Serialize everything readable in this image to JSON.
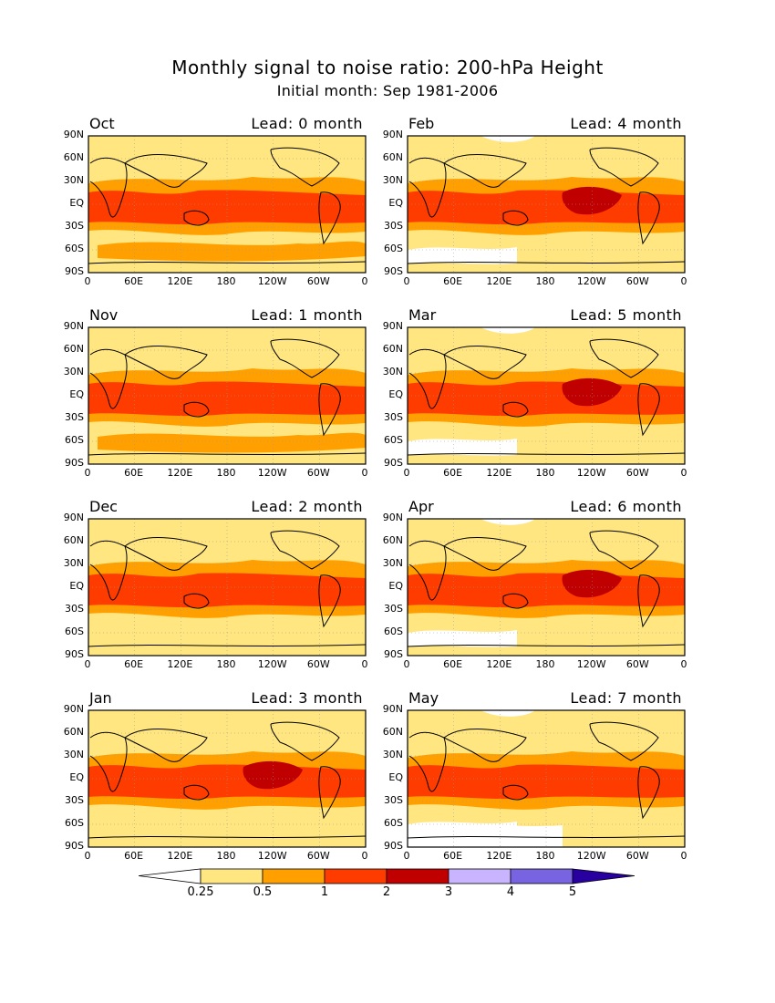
{
  "header": {
    "title": "Monthly signal to noise ratio: 200-hPa Height",
    "subtitle": "Initial month: Sep 1981-2006"
  },
  "axes": {
    "lat_ticks": [
      "90N",
      "60N",
      "30N",
      "EQ",
      "30S",
      "60S",
      "90S"
    ],
    "lon_ticks": [
      "0",
      "60E",
      "120E",
      "180",
      "120W",
      "60W",
      "0"
    ]
  },
  "panels": [
    {
      "month": "Oct",
      "lead": "Lead: 0 month"
    },
    {
      "month": "Feb",
      "lead": "Lead: 4 month"
    },
    {
      "month": "Nov",
      "lead": "Lead: 1 month"
    },
    {
      "month": "Mar",
      "lead": "Lead: 5 month"
    },
    {
      "month": "Dec",
      "lead": "Lead: 2 month"
    },
    {
      "month": "Apr",
      "lead": "Lead: 6 month"
    },
    {
      "month": "Jan",
      "lead": "Lead: 3 month"
    },
    {
      "month": "May",
      "lead": "Lead: 7 month"
    }
  ],
  "colorbar": {
    "labels": [
      "0.25",
      "0.5",
      "1",
      "2",
      "3",
      "4",
      "5"
    ],
    "colors": [
      "#ffffff",
      "#ffe680",
      "#ffa000",
      "#ff3c00",
      "#c00000",
      "#c8b4ff",
      "#7864e0",
      "#2800a0"
    ]
  },
  "colors": {
    "background_fill": "#ffe680",
    "band_orange": "#ffa000",
    "band_red": "#ff3c00",
    "band_darkred": "#c00000",
    "white": "#ffffff"
  }
}
